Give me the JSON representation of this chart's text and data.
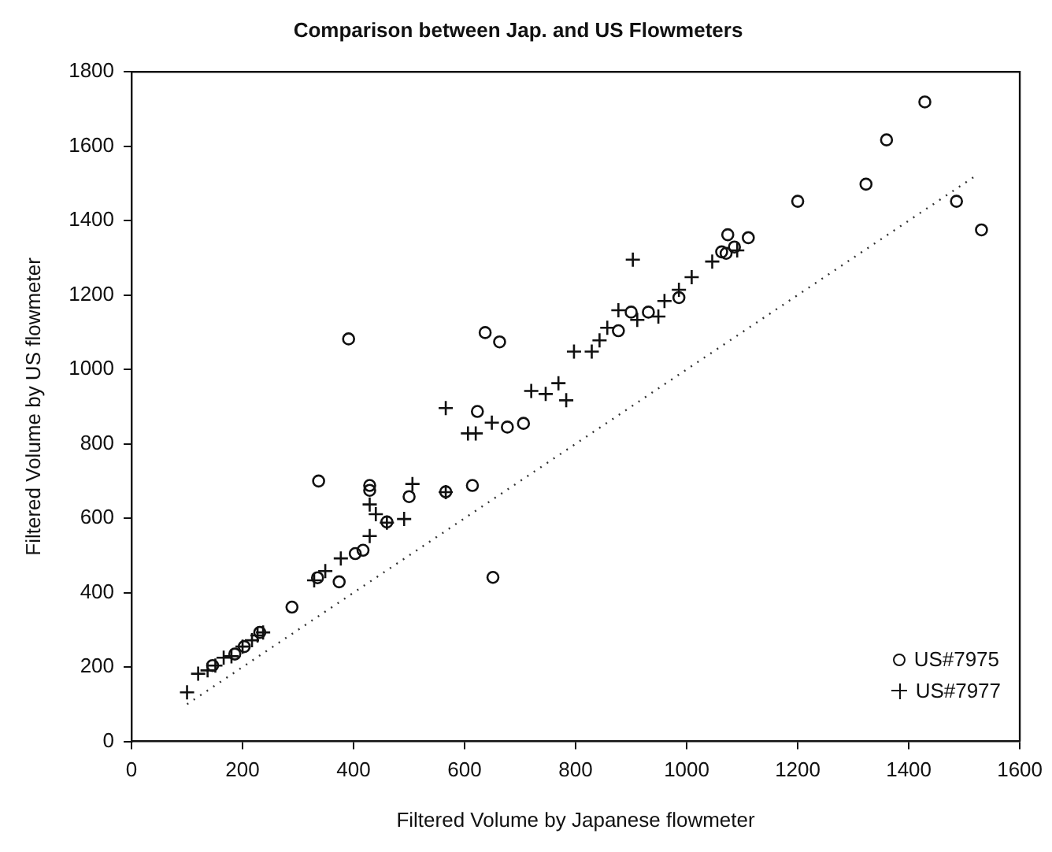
{
  "chart_data": {
    "type": "scatter",
    "title": "Comparison between Jap. and US Flowmeters",
    "xlabel": "Filtered Volume by Japanese flowmeter",
    "ylabel": "Filtered Volume by US flowmeter",
    "xlim": [
      0,
      1600
    ],
    "xticks": [
      0,
      200,
      400,
      600,
      800,
      1000,
      1200,
      1400,
      1600
    ],
    "ylim": [
      0,
      1800
    ],
    "yticks": [
      0,
      200,
      400,
      600,
      800,
      1000,
      1200,
      1400,
      1600,
      1800
    ],
    "grid": false,
    "legend": "bottom right",
    "series": [
      {
        "name": "US#7975",
        "color": "#111111",
        "marker": "circle",
        "x": [
          391,
          637,
          663,
          623,
          677,
          706,
          1074,
          1063,
          1071,
          1086,
          1111,
          1200,
          1323,
          1360,
          1429,
          1486,
          1531,
          986,
          931,
          900,
          877,
          337,
          429,
          429,
          500,
          566,
          614,
          651,
          460,
          403,
          417,
          335,
          374,
          289,
          146,
          203,
          186,
          231
        ],
        "values": [
          1082,
          1099,
          1074,
          887,
          845,
          855,
          1362,
          1316,
          1312,
          1329,
          1354,
          1452,
          1498,
          1617,
          1719,
          1452,
          1375,
          1193,
          1154,
          1154,
          1104,
          700,
          688,
          675,
          658,
          671,
          688,
          441,
          590,
          505,
          514,
          440,
          429,
          361,
          204,
          255,
          235,
          293
        ]
      },
      {
        "name": "US#7977",
        "color": "#111111",
        "marker": "cross",
        "x": [
          566,
          720,
          746,
          769,
          783,
          649,
          606,
          620,
          903,
          1009,
          1046,
          1091,
          986,
          960,
          949,
          911,
          877,
          857,
          843,
          829,
          797,
          506,
          566,
          429,
          440,
          460,
          491,
          429,
          377,
          349,
          329,
          100,
          120,
          137,
          151,
          166,
          180,
          200,
          209,
          217,
          227,
          237
        ],
        "values": [
          896,
          942,
          934,
          963,
          917,
          857,
          828,
          828,
          1295,
          1248,
          1290,
          1320,
          1214,
          1184,
          1142,
          1133,
          1159,
          1112,
          1078,
          1048,
          1048,
          692,
          670,
          637,
          611,
          588,
          598,
          552,
          492,
          458,
          433,
          132,
          182,
          191,
          204,
          225,
          229,
          255,
          null,
          272,
          285,
          293
        ]
      },
      {
        "type": "line",
        "color": "#333333",
        "line_style": "dotted",
        "marker": "none",
        "x": [
          100,
          1520
        ],
        "values": [
          100,
          1520
        ]
      }
    ]
  }
}
